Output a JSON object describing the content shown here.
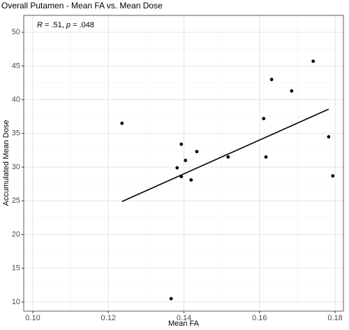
{
  "chart_data": {
    "type": "scatter",
    "title": "Overall Putamen - Mean FA vs. Mean Dose",
    "x_label": "Mean FA",
    "y_label": "Accumulated Mean Dose",
    "annotation": [
      "R",
      " = .51, ",
      "p",
      " = .048"
    ],
    "x": [
      0.1236,
      0.1366,
      0.1382,
      0.1393,
      0.1393,
      0.1404,
      0.1419,
      0.1434,
      0.1517,
      0.1611,
      0.1617,
      0.1632,
      0.1685,
      0.1742,
      0.1783,
      0.1794
    ],
    "series": [
      {
        "color": "#000000",
        "values": [
          36.5,
          10.5,
          29.9,
          33.4,
          28.6,
          31.0,
          28.1,
          32.3,
          31.5,
          37.2,
          31.5,
          43.0,
          41.3,
          45.7,
          34.5,
          28.7
        ]
      }
    ],
    "trend": {
      "x": [
        0.1236,
        0.1783
      ],
      "y": [
        24.9,
        38.6
      ],
      "color": "#000000"
    },
    "xlim": [
      0.0976,
      0.1822
    ],
    "ylim": [
      8.65,
      52.5
    ],
    "xticks": [
      {
        "value": 0.1,
        "label": "0.10"
      },
      0.12,
      0.14,
      0.16,
      0.18
    ],
    "yticks": [
      10,
      15,
      20,
      25,
      30,
      35,
      40,
      45,
      50
    ],
    "grid": true
  }
}
